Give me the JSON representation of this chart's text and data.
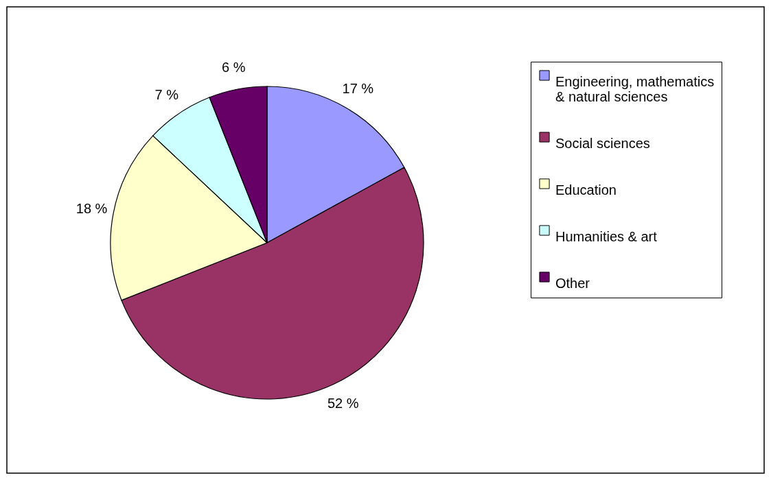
{
  "chart_data": {
    "type": "pie",
    "categories": [
      "Engineering, mathematics & natural sciences",
      "Social sciences",
      "Education",
      "Humanities & art",
      "Other"
    ],
    "values": [
      17,
      52,
      18,
      7,
      6
    ],
    "colors": [
      "#9999ff",
      "#993366",
      "#ffffcc",
      "#ccffff",
      "#660066"
    ],
    "value_labels": [
      "17 %",
      "52 %",
      "18 %",
      "7 %",
      "6 %"
    ],
    "legend": "right"
  }
}
